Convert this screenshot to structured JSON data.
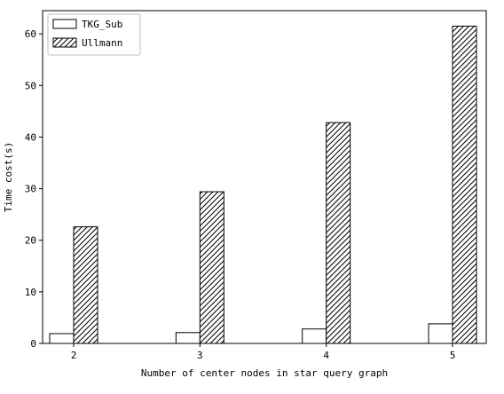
{
  "chart_data": {
    "type": "bar",
    "title": "",
    "xlabel": "Number of center nodes in star query graph",
    "ylabel": "Time cost(s)",
    "categories": [
      "2",
      "3",
      "4",
      "5"
    ],
    "series": [
      {
        "name": "TKG_Sub",
        "values": [
          1.9,
          2.1,
          2.8,
          3.8
        ],
        "fill": "#ffffff",
        "pattern": "none"
      },
      {
        "name": "Ullmann",
        "values": [
          22.6,
          29.4,
          42.8,
          61.5
        ],
        "fill": "#ffffff",
        "pattern": "diagonal-hatch"
      }
    ],
    "ylim": [
      0,
      64.5
    ],
    "yticks": [
      0,
      10,
      20,
      30,
      40,
      50,
      60
    ],
    "grid": false,
    "legend_position": "top-left",
    "colors": {
      "edge": "#000000",
      "background": "#ffffff"
    }
  }
}
